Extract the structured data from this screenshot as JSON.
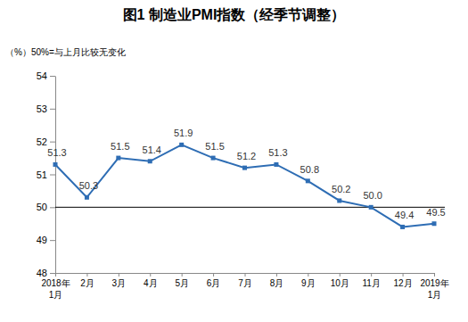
{
  "chart_data": {
    "type": "line",
    "title": "图1 制造业PMI指数（经季节调整）",
    "annotations": [
      "（%）50%=与上月比较无变化"
    ],
    "categories": [
      "2018年\n1月",
      "2月",
      "3月",
      "4月",
      "5月",
      "6月",
      "7月",
      "8月",
      "9月",
      "10月",
      "11月",
      "12月",
      "2019年\n1月"
    ],
    "values": [
      51.3,
      50.3,
      51.5,
      51.4,
      51.9,
      51.5,
      51.2,
      51.3,
      50.8,
      50.2,
      50.0,
      49.4,
      49.5
    ],
    "value_labels": [
      "51.3",
      "50.3",
      "51.5",
      "51.4",
      "51.9",
      "51.5",
      "51.2",
      "51.3",
      "50.8",
      "50.2",
      "50.0",
      "49.4",
      "49.5"
    ],
    "color": "#2e6db4",
    "marker": "square",
    "data_labels": true,
    "grid": false,
    "ylim": [
      48,
      54
    ],
    "yticks": [
      48,
      49,
      50,
      51,
      52,
      53,
      54
    ],
    "reference_lines": [
      50
    ]
  }
}
